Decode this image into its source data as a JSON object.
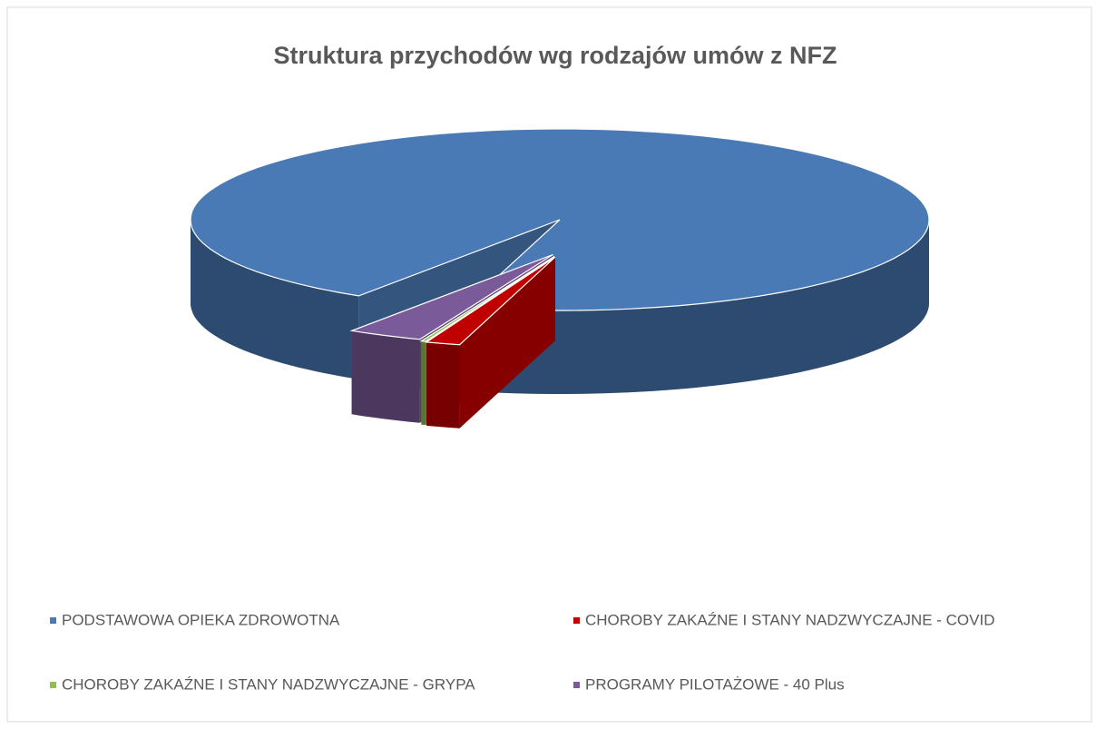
{
  "chart_data": {
    "type": "pie3d",
    "title": "Struktura przychodów wg rodzajów umów z NFZ",
    "categories": [
      "PODSTAWOWA OPIEKA ZDROWOTNA",
      "CHOROBY ZAKAŹNE I STANY NADZWYCZAJNE - COVID",
      "CHOROBY ZAKAŹNE I STANY NADZWYCZAJNE - GRYPA",
      "PROGRAMY PILOTAŻOWE - 40 Plus"
    ],
    "values": [
      95,
      1.5,
      0.2,
      3.3
    ],
    "colors": [
      "#4a7ab5",
      "#c00000",
      "#8fbf4f",
      "#7b5a9a"
    ],
    "legend": "bottom"
  }
}
